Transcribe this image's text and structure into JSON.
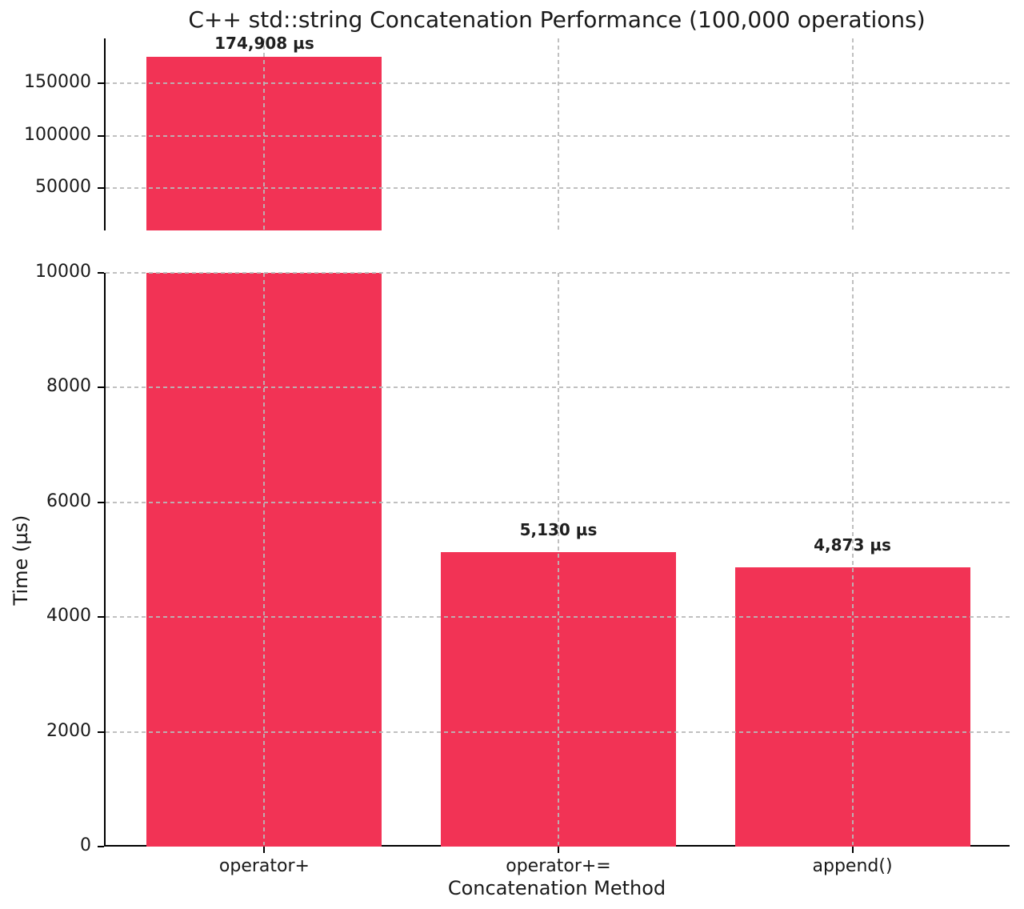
{
  "chart_data": {
    "type": "bar",
    "title": "C++ std::string Concatenation Performance (100,000 operations)",
    "xlabel": "Concatenation Method",
    "ylabel": "Time (µs)",
    "categories": [
      "operator+",
      "operator+=",
      "append()"
    ],
    "values": [
      174908,
      5130,
      4873
    ],
    "value_labels": [
      "174,908 µs",
      "5,130 µs",
      "4,873 µs"
    ],
    "bar_color": "#F23355",
    "grid": {
      "visible": true,
      "style": "dashed",
      "color": "#bdbdbd",
      "drawn_over_bars": true
    },
    "legend": "none",
    "broken_y_axis": true,
    "panels": [
      {
        "name": "upper",
        "ylim": [
          10000,
          192400
        ],
        "yticks": [
          50000,
          100000,
          150000
        ],
        "ytick_labels": [
          "50000",
          "100000",
          "150000"
        ]
      },
      {
        "name": "lower",
        "ylim": [
          0,
          10000
        ],
        "yticks": [
          0,
          2000,
          4000,
          6000,
          8000,
          10000
        ],
        "ytick_labels": [
          "0",
          "2000",
          "4000",
          "6000",
          "8000",
          "10000"
        ]
      }
    ],
    "xlim": [
      -0.54,
      2.54
    ],
    "bar_width": 0.8
  }
}
